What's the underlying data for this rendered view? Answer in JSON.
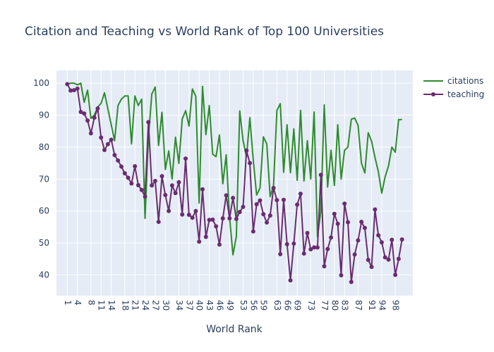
{
  "chart_data": {
    "type": "line",
    "title": "Citation and Teaching vs World Rank of Top 100 Universities",
    "xlabel": "World Rank",
    "ylabel": "",
    "x_tick_labels": [
      "1",
      "4",
      "8",
      "11",
      "14",
      "18",
      "21",
      "24",
      "27",
      "30",
      "34",
      "37",
      "40",
      "43",
      "46",
      "49",
      "53",
      "56",
      "59",
      "63",
      "66",
      "69",
      "73",
      "77",
      "80",
      "83",
      "87",
      "91",
      "94",
      "98"
    ],
    "y_ticks": [
      40,
      50,
      60,
      70,
      80,
      90,
      100
    ],
    "ylim": [
      33.5,
      104
    ],
    "grid": true,
    "legend_position": "top-right",
    "x": [
      1,
      2,
      3,
      4,
      5,
      6,
      7,
      8,
      9,
      10,
      11,
      12,
      13,
      14,
      15,
      16,
      17,
      18,
      19,
      20,
      21,
      22,
      23,
      24,
      25,
      26,
      27,
      28,
      29,
      30,
      31,
      32,
      33,
      34,
      35,
      36,
      37,
      38,
      39,
      40,
      41,
      42,
      43,
      44,
      45,
      46,
      47,
      48,
      49,
      50,
      51,
      52,
      53,
      54,
      55,
      56,
      57,
      58,
      59,
      60,
      61,
      62,
      63,
      64,
      65,
      66,
      67,
      68,
      69,
      70,
      71,
      72,
      73,
      74,
      75,
      76,
      77,
      78,
      79,
      80,
      81,
      82,
      83,
      84,
      85,
      86,
      87,
      88,
      89,
      90,
      91,
      92,
      93,
      94,
      95,
      96,
      97,
      98,
      99,
      100
    ],
    "series": [
      {
        "name": "citations",
        "color": "#2e8b2e",
        "mode": "lines",
        "values": [
          99.7,
          100,
          100,
          99.5,
          100,
          94,
          97.8,
          89,
          90,
          92.5,
          93.7,
          97,
          92,
          87,
          82,
          93,
          95,
          96,
          96,
          81,
          96,
          93,
          95,
          57.7,
          83,
          96.6,
          98.8,
          80.5,
          90.9,
          73,
          78.8,
          70,
          83.1,
          74.9,
          88.8,
          91.4,
          86.6,
          98.2,
          95.9,
          62.5,
          99,
          83.9,
          93,
          77.8,
          77,
          83.8,
          68.5,
          77.6,
          58,
          46.3,
          52,
          91.3,
          82,
          76.9,
          89.2,
          76,
          65,
          67.2,
          83.2,
          81,
          64.5,
          68,
          91.5,
          93.6,
          72.1,
          87,
          72,
          85.7,
          69.6,
          91.5,
          69.4,
          82,
          70,
          91,
          51.9,
          60,
          93.2,
          67.5,
          79,
          68,
          87,
          70,
          79,
          80,
          88.7,
          89.1,
          86.8,
          75,
          71.9,
          84.5,
          81.8,
          76.8,
          72.3,
          65.6,
          70.7,
          74.1,
          80,
          78.4,
          88.6,
          88.6
        ]
      },
      {
        "name": "teaching",
        "color": "#6a2c70",
        "mode": "lines+markers",
        "values": [
          99.7,
          97.7,
          97.8,
          98.3,
          91,
          90.5,
          88.3,
          84.3,
          89.2,
          92.1,
          83,
          79.1,
          80.9,
          82.3,
          77.5,
          75.8,
          73.9,
          71.8,
          70.4,
          68.6,
          74,
          68.1,
          66.6,
          64.5,
          87.8,
          68,
          69.4,
          56.6,
          70.9,
          65,
          60,
          68,
          65.6,
          69,
          58.9,
          76.4,
          58.8,
          57.9,
          60,
          50.4,
          66.8,
          51.9,
          57.2,
          57.3,
          55.2,
          49.5,
          57.7,
          64.9,
          57.7,
          64.1,
          57.5,
          59.7,
          61.3,
          78.9,
          75,
          53.6,
          62.1,
          63.3,
          59,
          56.4,
          58.6,
          67.2,
          63.4,
          46.5,
          63.5,
          49.6,
          38.3,
          49.8,
          62,
          65.4,
          46.7,
          53.1,
          48,
          48.6,
          48.6,
          71.3,
          42.7,
          48.1,
          51.7,
          59.1,
          56,
          39.9,
          62.3,
          56.5,
          37.8,
          46.4,
          50.8,
          56.6,
          54.7,
          44.7,
          42.5,
          60.5,
          52.4,
          50.2,
          45.5,
          44.8,
          51,
          40,
          45,
          51.1
        ]
      }
    ]
  }
}
